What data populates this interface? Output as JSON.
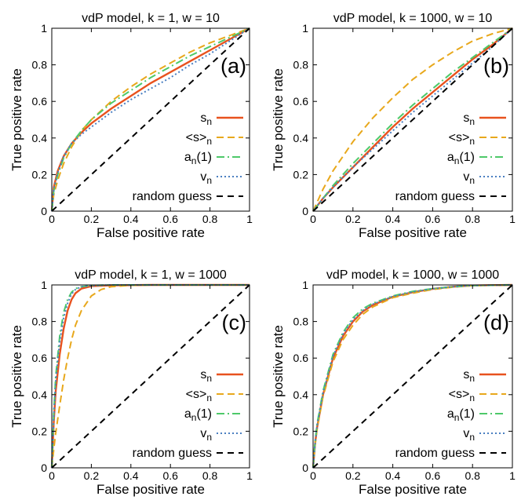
{
  "chart_data": [
    {
      "type": "line",
      "title": "vdP model, k = 1, w = 10",
      "panel_label": "(a)",
      "xlabel": "False positive rate",
      "ylabel": "True positive rate",
      "xlim": [
        0,
        1
      ],
      "ylim": [
        0,
        1
      ],
      "xticks": [
        "0",
        "0.2",
        "0.4",
        "0.6",
        "0.8",
        "1"
      ],
      "yticks": [
        "0",
        "0.2",
        "0.4",
        "0.6",
        "0.8",
        "1"
      ],
      "legend_position": "lower-right",
      "series": [
        {
          "name_main": "s",
          "name_sub": "n",
          "name_tail": "",
          "color": "#e8521e",
          "dash": "solid",
          "x": [
            0,
            0.01,
            0.03,
            0.06,
            0.1,
            0.15,
            0.2,
            0.3,
            0.4,
            0.5,
            0.6,
            0.7,
            0.8,
            0.9,
            1
          ],
          "y": [
            0,
            0.13,
            0.22,
            0.3,
            0.37,
            0.43,
            0.48,
            0.56,
            0.63,
            0.7,
            0.76,
            0.82,
            0.88,
            0.94,
            1
          ]
        },
        {
          "name_main": "<s>",
          "name_sub": "n",
          "name_tail": "",
          "color": "#e8a81c",
          "dash": "long",
          "x": [
            0,
            0.01,
            0.03,
            0.06,
            0.1,
            0.15,
            0.2,
            0.3,
            0.4,
            0.5,
            0.6,
            0.7,
            0.8,
            0.9,
            1
          ],
          "y": [
            0,
            0.09,
            0.17,
            0.26,
            0.35,
            0.44,
            0.5,
            0.6,
            0.68,
            0.75,
            0.81,
            0.87,
            0.92,
            0.96,
            1
          ]
        },
        {
          "name_main": "a",
          "name_sub": "n",
          "name_tail": "(1)",
          "color": "#4ec96a",
          "dash": "dashdot",
          "x": [
            0,
            0.01,
            0.03,
            0.06,
            0.1,
            0.15,
            0.2,
            0.3,
            0.4,
            0.5,
            0.6,
            0.7,
            0.8,
            0.9,
            1
          ],
          "y": [
            0,
            0.11,
            0.2,
            0.29,
            0.37,
            0.44,
            0.5,
            0.59,
            0.66,
            0.73,
            0.79,
            0.85,
            0.9,
            0.95,
            1
          ]
        },
        {
          "name_main": "v",
          "name_sub": "n",
          "name_tail": "",
          "color": "#4a7fc1",
          "dash": "dotted",
          "x": [
            0,
            0.01,
            0.03,
            0.06,
            0.1,
            0.15,
            0.2,
            0.3,
            0.4,
            0.5,
            0.6,
            0.7,
            0.8,
            0.9,
            1
          ],
          "y": [
            0,
            0.12,
            0.21,
            0.3,
            0.37,
            0.42,
            0.46,
            0.54,
            0.61,
            0.67,
            0.73,
            0.8,
            0.86,
            0.93,
            1
          ]
        },
        {
          "name_main": "random guess",
          "name_sub": "",
          "name_tail": "",
          "color": "#000000",
          "dash": "dashed",
          "x": [
            0,
            1
          ],
          "y": [
            0,
            1
          ]
        }
      ]
    },
    {
      "type": "line",
      "title": "vdP model, k = 1000, w = 10",
      "panel_label": "(b)",
      "xlabel": "False positive rate",
      "ylabel": "True positive rate",
      "xlim": [
        0,
        1
      ],
      "ylim": [
        0,
        1
      ],
      "xticks": [
        "0",
        "0.2",
        "0.4",
        "0.6",
        "0.8",
        "1"
      ],
      "yticks": [
        "0",
        "0.2",
        "0.4",
        "0.6",
        "0.8",
        "1"
      ],
      "legend_position": "lower-right",
      "series": [
        {
          "name_main": "s",
          "name_sub": "n",
          "name_tail": "",
          "color": "#e8521e",
          "dash": "solid",
          "x": [
            0,
            0.05,
            0.1,
            0.2,
            0.3,
            0.4,
            0.5,
            0.6,
            0.7,
            0.8,
            0.9,
            1
          ],
          "y": [
            0,
            0.07,
            0.13,
            0.24,
            0.35,
            0.46,
            0.56,
            0.65,
            0.74,
            0.83,
            0.91,
            1
          ]
        },
        {
          "name_main": "<s>",
          "name_sub": "n",
          "name_tail": "",
          "color": "#e8a81c",
          "dash": "long",
          "x": [
            0,
            0.05,
            0.1,
            0.2,
            0.3,
            0.4,
            0.5,
            0.6,
            0.7,
            0.8,
            0.9,
            1
          ],
          "y": [
            0,
            0.12,
            0.22,
            0.38,
            0.51,
            0.62,
            0.72,
            0.8,
            0.87,
            0.93,
            0.97,
            1
          ]
        },
        {
          "name_main": "a",
          "name_sub": "n",
          "name_tail": "(1)",
          "color": "#4ec96a",
          "dash": "dashdot",
          "x": [
            0,
            0.05,
            0.1,
            0.2,
            0.3,
            0.4,
            0.5,
            0.6,
            0.7,
            0.8,
            0.9,
            1
          ],
          "y": [
            0,
            0.07,
            0.14,
            0.26,
            0.37,
            0.48,
            0.58,
            0.67,
            0.76,
            0.84,
            0.92,
            1
          ]
        },
        {
          "name_main": "v",
          "name_sub": "n",
          "name_tail": "",
          "color": "#4a7fc1",
          "dash": "dotted",
          "x": [
            0,
            0.05,
            0.1,
            0.2,
            0.3,
            0.4,
            0.5,
            0.6,
            0.7,
            0.8,
            0.9,
            1
          ],
          "y": [
            0,
            0.07,
            0.13,
            0.24,
            0.34,
            0.44,
            0.54,
            0.63,
            0.72,
            0.81,
            0.9,
            1
          ]
        },
        {
          "name_main": "random guess",
          "name_sub": "",
          "name_tail": "",
          "color": "#000000",
          "dash": "dashed",
          "x": [
            0,
            1
          ],
          "y": [
            0,
            1
          ]
        }
      ]
    },
    {
      "type": "line",
      "title": "vdP model, k = 1, w = 1000",
      "panel_label": "(c)",
      "xlabel": "False positive rate",
      "ylabel": "True positive rate",
      "xlim": [
        0,
        1
      ],
      "ylim": [
        0,
        1
      ],
      "xticks": [
        "0",
        "0.2",
        "0.4",
        "0.6",
        "0.8",
        "1"
      ],
      "yticks": [
        "0",
        "0.2",
        "0.4",
        "0.6",
        "0.8",
        "1"
      ],
      "legend_position": "lower-right",
      "series": [
        {
          "name_main": "s",
          "name_sub": "n",
          "name_tail": "",
          "color": "#e8521e",
          "dash": "solid",
          "x": [
            0,
            0.01,
            0.02,
            0.04,
            0.06,
            0.08,
            0.1,
            0.12,
            0.15,
            0.2,
            0.3,
            0.5,
            1
          ],
          "y": [
            0,
            0.25,
            0.42,
            0.62,
            0.76,
            0.86,
            0.92,
            0.955,
            0.98,
            0.993,
            0.998,
            1,
            1
          ]
        },
        {
          "name_main": "<s>",
          "name_sub": "n",
          "name_tail": "",
          "color": "#e8a81c",
          "dash": "long",
          "x": [
            0,
            0.01,
            0.02,
            0.04,
            0.06,
            0.08,
            0.1,
            0.12,
            0.15,
            0.2,
            0.25,
            0.3,
            0.4,
            0.5,
            1
          ],
          "y": [
            0,
            0.1,
            0.19,
            0.34,
            0.48,
            0.6,
            0.7,
            0.78,
            0.86,
            0.94,
            0.975,
            0.99,
            0.998,
            1,
            1
          ]
        },
        {
          "name_main": "a",
          "name_sub": "n",
          "name_tail": "(1)",
          "color": "#4ec96a",
          "dash": "dashdot",
          "x": [
            0,
            0.01,
            0.02,
            0.04,
            0.06,
            0.08,
            0.1,
            0.12,
            0.15,
            0.2,
            0.3,
            0.5,
            1
          ],
          "y": [
            0,
            0.3,
            0.5,
            0.72,
            0.85,
            0.92,
            0.96,
            0.98,
            0.99,
            0.997,
            1,
            1,
            1
          ]
        },
        {
          "name_main": "v",
          "name_sub": "n",
          "name_tail": "",
          "color": "#4a7fc1",
          "dash": "dotted",
          "x": [
            0,
            0.01,
            0.02,
            0.04,
            0.06,
            0.08,
            0.1,
            0.12,
            0.15,
            0.2,
            0.3,
            0.5,
            1
          ],
          "y": [
            0,
            0.28,
            0.47,
            0.69,
            0.82,
            0.9,
            0.95,
            0.975,
            0.99,
            0.996,
            1,
            1,
            1
          ]
        },
        {
          "name_main": "random guess",
          "name_sub": "",
          "name_tail": "",
          "color": "#000000",
          "dash": "dashed",
          "x": [
            0,
            1
          ],
          "y": [
            0,
            1
          ]
        }
      ]
    },
    {
      "type": "line",
      "title": "vdP model, k = 1000, w = 1000",
      "panel_label": "(d)",
      "xlabel": "False positive rate",
      "ylabel": "True positive rate",
      "xlim": [
        0,
        1
      ],
      "ylim": [
        0,
        1
      ],
      "xticks": [
        "0",
        "0.2",
        "0.4",
        "0.6",
        "0.8",
        "1"
      ],
      "yticks": [
        "0",
        "0.2",
        "0.4",
        "0.6",
        "0.8",
        "1"
      ],
      "legend_position": "lower-right",
      "series": [
        {
          "name_main": "s",
          "name_sub": "n",
          "name_tail": "",
          "color": "#e8521e",
          "dash": "solid",
          "x": [
            0,
            0.01,
            0.02,
            0.05,
            0.1,
            0.15,
            0.2,
            0.25,
            0.3,
            0.4,
            0.5,
            0.6,
            0.7,
            0.8,
            1
          ],
          "y": [
            0,
            0.13,
            0.22,
            0.4,
            0.6,
            0.72,
            0.8,
            0.855,
            0.89,
            0.935,
            0.96,
            0.978,
            0.99,
            0.997,
            1
          ]
        },
        {
          "name_main": "<s>",
          "name_sub": "n",
          "name_tail": "",
          "color": "#e8a81c",
          "dash": "long",
          "x": [
            0,
            0.01,
            0.02,
            0.05,
            0.1,
            0.15,
            0.2,
            0.25,
            0.3,
            0.4,
            0.5,
            0.6,
            0.7,
            0.8,
            1
          ],
          "y": [
            0,
            0.12,
            0.21,
            0.39,
            0.58,
            0.7,
            0.78,
            0.84,
            0.88,
            0.93,
            0.955,
            0.975,
            0.988,
            0.996,
            1
          ]
        },
        {
          "name_main": "a",
          "name_sub": "n",
          "name_tail": "(1)",
          "color": "#4ec96a",
          "dash": "dashdot",
          "x": [
            0,
            0.01,
            0.02,
            0.05,
            0.1,
            0.15,
            0.2,
            0.25,
            0.3,
            0.4,
            0.5,
            0.6,
            0.7,
            0.8,
            1
          ],
          "y": [
            0,
            0.14,
            0.24,
            0.42,
            0.62,
            0.74,
            0.82,
            0.87,
            0.9,
            0.94,
            0.965,
            0.98,
            0.99,
            0.997,
            1
          ]
        },
        {
          "name_main": "v",
          "name_sub": "n",
          "name_tail": "",
          "color": "#4a7fc1",
          "dash": "dotted",
          "x": [
            0,
            0.01,
            0.02,
            0.05,
            0.1,
            0.15,
            0.2,
            0.25,
            0.3,
            0.4,
            0.5,
            0.6,
            0.7,
            0.8,
            1
          ],
          "y": [
            0,
            0.13,
            0.23,
            0.41,
            0.61,
            0.73,
            0.81,
            0.86,
            0.895,
            0.937,
            0.962,
            0.979,
            0.99,
            0.997,
            1
          ]
        },
        {
          "name_main": "random guess",
          "name_sub": "",
          "name_tail": "",
          "color": "#000000",
          "dash": "dashed",
          "x": [
            0,
            1
          ],
          "y": [
            0,
            1
          ]
        }
      ]
    }
  ]
}
